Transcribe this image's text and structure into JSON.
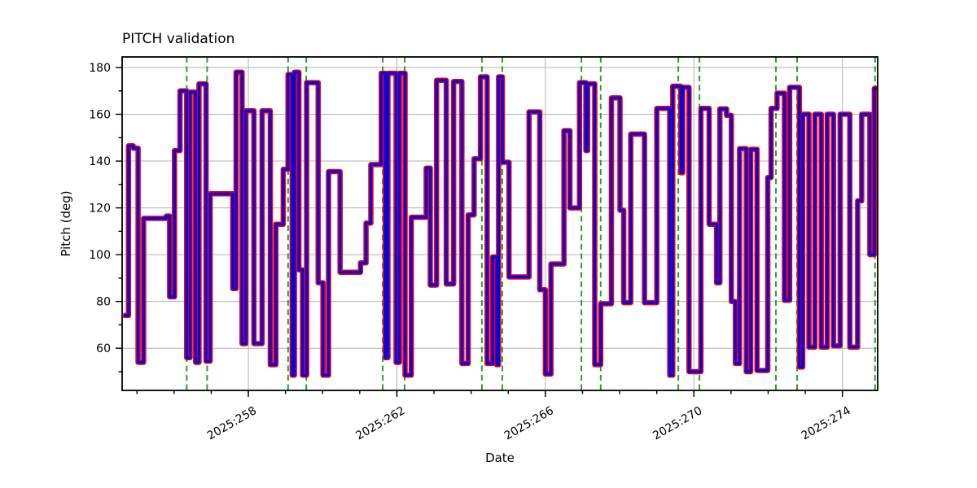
{
  "chart_data": {
    "type": "line",
    "title": "PITCH validation",
    "xlabel": "Date",
    "ylabel": "Pitch (deg)",
    "grid": true,
    "xlim": [
      254.6,
      274.95
    ],
    "ylim": [
      42,
      184.5
    ],
    "x_major_ticks": [
      258,
      262,
      266,
      270,
      274
    ],
    "x_tick_labels": [
      "2025:258",
      "2025:262",
      "2025:266",
      "2025:270",
      "2025:274"
    ],
    "x_minor_ticks": [
      255,
      256,
      257,
      258,
      259,
      260,
      261,
      262,
      263,
      264,
      265,
      266,
      267,
      268,
      269,
      270,
      271,
      272,
      273,
      274
    ],
    "y_ticks": [
      60,
      80,
      100,
      120,
      140,
      160,
      180
    ],
    "y_minor_ticks": [
      50,
      70,
      90,
      110,
      130,
      150,
      170
    ],
    "colors": {
      "grid": "#b0b0b0",
      "spine": "#000000",
      "event_line": "#2ca02c",
      "series_reference": "#e8000b",
      "series_measured": "#0000e5"
    },
    "series": [
      {
        "name": "reference-step-line",
        "color": "#e8000b",
        "linewidth": 6.5,
        "style": "steps-post"
      },
      {
        "name": "measured-step-line",
        "color": "#0000e5",
        "linewidth": 3.2,
        "style": "steps-post"
      }
    ],
    "event_lines": {
      "style": "dashed",
      "color": "#2ca02c",
      "days": [
        256.34,
        256.89,
        259.07,
        259.56,
        261.62,
        262.21,
        264.29,
        264.84,
        266.97,
        267.49,
        269.58,
        270.15,
        272.21,
        272.78,
        274.88
      ]
    },
    "end_day": 274.95,
    "steps": [
      [
        254.63,
        74
      ],
      [
        254.77,
        146.5
      ],
      [
        254.9,
        145.5
      ],
      [
        255.03,
        54
      ],
      [
        255.18,
        115.5
      ],
      [
        255.79,
        116.5
      ],
      [
        255.88,
        82
      ],
      [
        256.01,
        144.5
      ],
      [
        256.16,
        170
      ],
      [
        256.34,
        56
      ],
      [
        256.43,
        169.5
      ],
      [
        256.58,
        54
      ],
      [
        256.67,
        173
      ],
      [
        256.86,
        54.5
      ],
      [
        256.97,
        126
      ],
      [
        257.58,
        85.5
      ],
      [
        257.67,
        178
      ],
      [
        257.83,
        62
      ],
      [
        257.93,
        161.5
      ],
      [
        258.15,
        62
      ],
      [
        258.37,
        161.5
      ],
      [
        258.59,
        53
      ],
      [
        258.74,
        113
      ],
      [
        258.94,
        136.5
      ],
      [
        259.07,
        177
      ],
      [
        259.18,
        48.5
      ],
      [
        259.24,
        178
      ],
      [
        259.36,
        93.5
      ],
      [
        259.46,
        48.5
      ],
      [
        259.57,
        173.5
      ],
      [
        259.88,
        88
      ],
      [
        260.01,
        48.5
      ],
      [
        260.16,
        135.5
      ],
      [
        260.47,
        92.5
      ],
      [
        261.02,
        96.5
      ],
      [
        261.17,
        113.5
      ],
      [
        261.3,
        138.5
      ],
      [
        261.58,
        177.5
      ],
      [
        261.69,
        56
      ],
      [
        261.76,
        177.5
      ],
      [
        261.98,
        54
      ],
      [
        262.07,
        177.5
      ],
      [
        262.22,
        48.5
      ],
      [
        262.39,
        116
      ],
      [
        262.79,
        137
      ],
      [
        262.9,
        87
      ],
      [
        263.07,
        174.5
      ],
      [
        263.33,
        87.5
      ],
      [
        263.53,
        174
      ],
      [
        263.75,
        53.5
      ],
      [
        263.92,
        117
      ],
      [
        264.08,
        141
      ],
      [
        264.25,
        176
      ],
      [
        264.43,
        53.5
      ],
      [
        264.58,
        99
      ],
      [
        264.69,
        53
      ],
      [
        264.74,
        176
      ],
      [
        264.84,
        139.5
      ],
      [
        265.02,
        90.5
      ],
      [
        265.56,
        161
      ],
      [
        265.85,
        85
      ],
      [
        266.0,
        49
      ],
      [
        266.15,
        96
      ],
      [
        266.5,
        153
      ],
      [
        266.66,
        120
      ],
      [
        266.92,
        173.5
      ],
      [
        267.09,
        144.5
      ],
      [
        267.14,
        173
      ],
      [
        267.33,
        53
      ],
      [
        267.49,
        79
      ],
      [
        267.78,
        167
      ],
      [
        268.01,
        119
      ],
      [
        268.11,
        79.5
      ],
      [
        268.3,
        151.5
      ],
      [
        268.67,
        79.5
      ],
      [
        269.0,
        162.5
      ],
      [
        269.35,
        48.5
      ],
      [
        269.43,
        172
      ],
      [
        269.65,
        135
      ],
      [
        269.7,
        171.5
      ],
      [
        269.87,
        50
      ],
      [
        270.19,
        162.5
      ],
      [
        270.41,
        113
      ],
      [
        270.61,
        88
      ],
      [
        270.7,
        162.3
      ],
      [
        270.88,
        159.5
      ],
      [
        271.01,
        80
      ],
      [
        271.12,
        53.5
      ],
      [
        271.23,
        145.3
      ],
      [
        271.41,
        50
      ],
      [
        271.53,
        145
      ],
      [
        271.7,
        50.5
      ],
      [
        271.99,
        133
      ],
      [
        272.08,
        162.5
      ],
      [
        272.24,
        169
      ],
      [
        272.44,
        80.5
      ],
      [
        272.58,
        171.5
      ],
      [
        272.84,
        52
      ],
      [
        272.93,
        160
      ],
      [
        273.1,
        60.5
      ],
      [
        273.26,
        160
      ],
      [
        273.43,
        60.5
      ],
      [
        273.59,
        160
      ],
      [
        273.76,
        61
      ],
      [
        273.94,
        160
      ],
      [
        274.2,
        60.5
      ],
      [
        274.41,
        123
      ],
      [
        274.52,
        160
      ],
      [
        274.74,
        100
      ],
      [
        274.86,
        171
      ]
    ]
  },
  "layout_note": "step validation plot with paired vertical event markers"
}
